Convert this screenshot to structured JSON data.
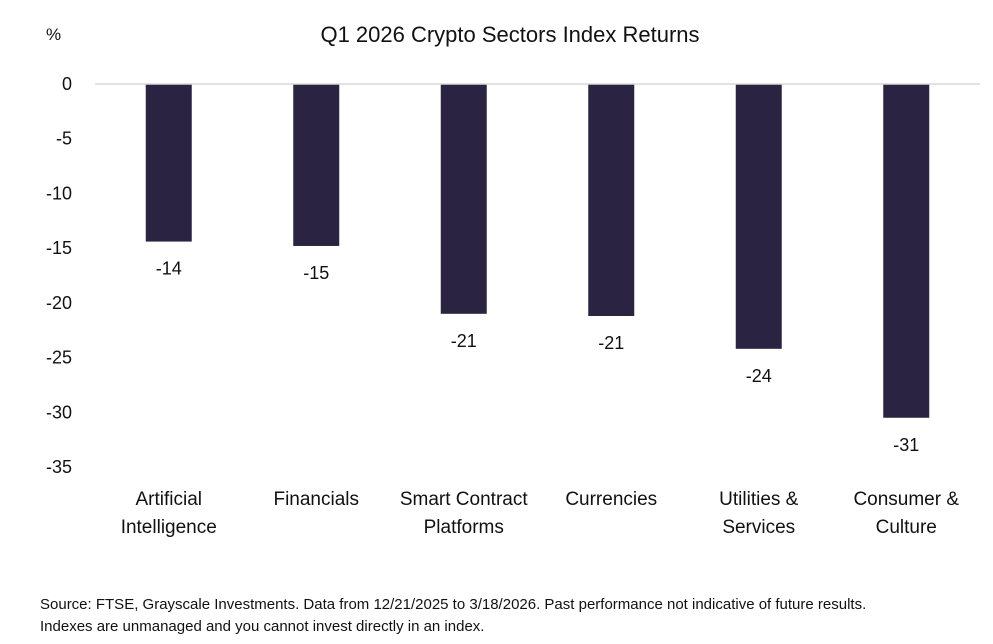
{
  "chart_data": {
    "type": "bar",
    "title": "Q1 2026 Crypto Sectors Index Returns",
    "unit_label": "%",
    "categories": [
      [
        "Artificial",
        "Intelligence"
      ],
      [
        "Financials"
      ],
      [
        "Smart Contract",
        "Platforms"
      ],
      [
        "Currencies"
      ],
      [
        "Utilities &",
        "Services"
      ],
      [
        "Consumer &",
        "Culture"
      ]
    ],
    "values": [
      -14.4,
      -14.8,
      -21.0,
      -21.2,
      -24.2,
      -30.5
    ],
    "data_labels": [
      "-14",
      "-15",
      "-21",
      "-21",
      "-24",
      "-31"
    ],
    "ylim": [
      -35,
      0
    ],
    "yticks": [
      0,
      -5,
      -10,
      -15,
      -20,
      -25,
      -30,
      -35
    ],
    "ytick_labels": [
      "0",
      "-5",
      "-10",
      "-15",
      "-20",
      "-25",
      "-30",
      "-35"
    ],
    "bar_color": "#2b2342",
    "axis_color": "#d9d9d9",
    "grid": false,
    "legend": "none"
  },
  "footnote": {
    "line1": "Source: FTSE, Grayscale Investments. Data from 12/21/2025 to 3/18/2026. Past performance not indicative of future results.",
    "line2": "Indexes are unmanaged and you cannot invest directly in an index."
  }
}
